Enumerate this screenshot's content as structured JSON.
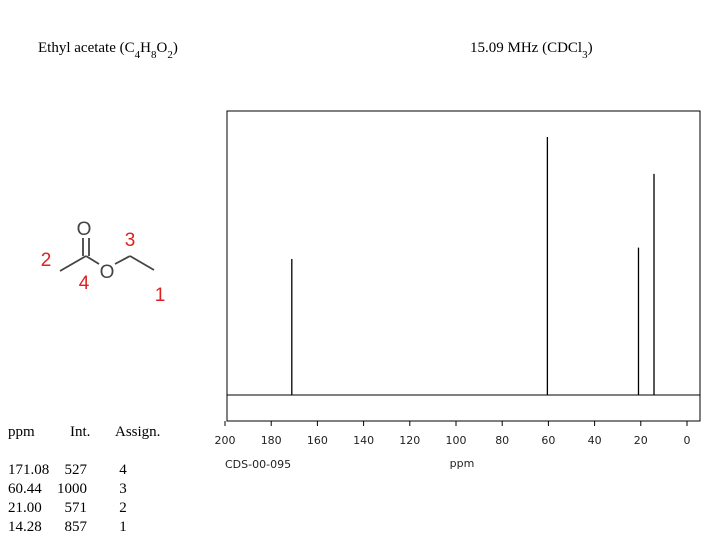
{
  "header": {
    "title_parts": [
      "Ethyl acetate (C",
      "4",
      "H",
      "8",
      "O",
      "2",
      ")"
    ],
    "frequency_parts": [
      "15.09 MHz (CDCl",
      "3",
      ")"
    ]
  },
  "molecule": {
    "atoms": [
      "O",
      "O"
    ],
    "numbers": [
      "1",
      "2",
      "3",
      "4"
    ],
    "atom_color": "#444444",
    "number_color": "#e02020"
  },
  "table": {
    "header": [
      "ppm",
      "Int.",
      "Assign."
    ],
    "rows": [
      [
        "171.08",
        "527",
        "4"
      ],
      [
        "60.44",
        "1000",
        "3"
      ],
      [
        "21.00",
        "571",
        "2"
      ],
      [
        "14.28",
        "857",
        "1"
      ]
    ]
  },
  "chart_data": {
    "type": "stem",
    "x_label": "ppm",
    "code": "CDS-00-095",
    "x": [
      171.08,
      60.44,
      21.0,
      14.28
    ],
    "values": [
      527,
      1000,
      571,
      857
    ],
    "color": "#000000",
    "xlim": [
      200,
      0
    ],
    "xticks": [
      200,
      180,
      160,
      140,
      120,
      100,
      80,
      60,
      40,
      20,
      0
    ],
    "ylim": [
      0,
      1000
    ]
  }
}
